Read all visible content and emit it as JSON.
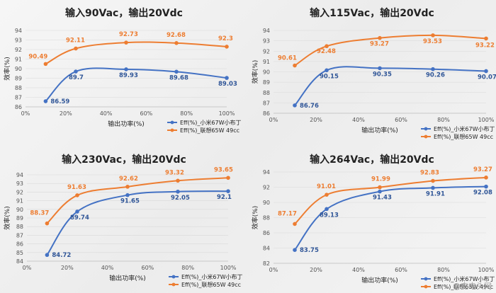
{
  "colors": {
    "series1": "#4472C4",
    "series2": "#ED7D31"
  },
  "watermark": "@充电头网",
  "chart_data": [
    {
      "type": "line",
      "title": "输入90Vac，输出20Vdc",
      "xlabel": "输出功率(%)",
      "ylabel": "效率(%)",
      "x": [
        10,
        25,
        50,
        75,
        100
      ],
      "xlim": [
        0,
        100
      ],
      "xticks": [
        "0%",
        "20%",
        "40%",
        "60%",
        "80%",
        "100%"
      ],
      "ylim": [
        86,
        94
      ],
      "yticks": [
        86,
        87,
        88,
        89,
        90,
        91,
        92,
        93,
        94
      ],
      "legend_position": "bottom-right",
      "series": [
        {
          "name": "Eff(%)_小米67W小布丁",
          "values": [
            86.59,
            89.7,
            89.93,
            89.68,
            89.03
          ],
          "labels": [
            "86.59",
            "89.7",
            "89.93",
            "89.68",
            "89.03"
          ]
        },
        {
          "name": "Eff(%)_联想65W 49cc",
          "values": [
            90.49,
            92.11,
            92.73,
            92.68,
            92.3
          ],
          "labels": [
            "90.49",
            "92.11",
            "92.73",
            "92.68",
            "92.3"
          ]
        }
      ]
    },
    {
      "type": "line",
      "title": "输入115Vac，输出20Vdc",
      "xlabel": "输出功率(%)",
      "ylabel": "效率(%)",
      "x": [
        10,
        25,
        50,
        75,
        100
      ],
      "xlim": [
        0,
        100
      ],
      "xticks": [
        "0%",
        "20%",
        "40%",
        "60%",
        "80%",
        "100%"
      ],
      "ylim": [
        86,
        94
      ],
      "yticks": [
        86,
        87,
        88,
        89,
        90,
        91,
        92,
        93,
        94
      ],
      "legend_position": "bottom-right",
      "series": [
        {
          "name": "Eff(%)_小米67W小布丁",
          "values": [
            86.76,
            90.15,
            90.35,
            90.26,
            90.07
          ],
          "labels": [
            "86.76",
            "90.15",
            "90.35",
            "90.26",
            "90.07"
          ]
        },
        {
          "name": "Eff(%)_联想65W 49cc",
          "values": [
            90.61,
            92.48,
            93.27,
            93.53,
            93.22
          ],
          "labels": [
            "90.61",
            "92.48",
            "93.27",
            "93.53",
            "93.22"
          ]
        }
      ]
    },
    {
      "type": "line",
      "title": "输入230Vac，输出20Vdc",
      "xlabel": "输出功率(%)",
      "ylabel": "效率(%)",
      "x": [
        10,
        25,
        50,
        75,
        100
      ],
      "xlim": [
        0,
        100
      ],
      "xticks": [
        "0%",
        "20%",
        "40%",
        "60%",
        "80%",
        "100%"
      ],
      "ylim": [
        84,
        94
      ],
      "yticks": [
        84,
        85,
        86,
        87,
        88,
        89,
        90,
        91,
        92,
        93,
        94
      ],
      "legend_position": "bottom-right",
      "series": [
        {
          "name": "Eff(%)_小米67W小布丁",
          "values": [
            84.72,
            89.74,
            91.65,
            92.05,
            92.1
          ],
          "labels": [
            "84.72",
            "89.74",
            "91.65",
            "92.05",
            "92.1"
          ]
        },
        {
          "name": "Eff(%)_联想65W 49cc",
          "values": [
            88.37,
            91.63,
            92.62,
            93.32,
            93.65
          ],
          "labels": [
            "88.37",
            "91.63",
            "92.62",
            "93.32",
            "93.65"
          ]
        }
      ]
    },
    {
      "type": "line",
      "title": "输入264Vac，输出20Vdc",
      "xlabel": "输出功率(%)",
      "ylabel": "效率(%)",
      "x": [
        10,
        25,
        50,
        75,
        100
      ],
      "xlim": [
        0,
        100
      ],
      "xticks": [
        "0%",
        "20%",
        "40%",
        "60%",
        "80%",
        "100%"
      ],
      "ylim": [
        82,
        94
      ],
      "yticks": [
        82,
        84,
        86,
        88,
        90,
        92,
        94
      ],
      "legend_position": "bottom-right",
      "series": [
        {
          "name": "Eff(%)_小米67W小布丁",
          "values": [
            83.75,
            89.13,
            91.43,
            91.91,
            92.08
          ],
          "labels": [
            "83.75",
            "89.13",
            "91.43",
            "91.91",
            "92.08"
          ]
        },
        {
          "name": "Eff(%)_联想65W 49cc",
          "values": [
            87.17,
            91.01,
            91.99,
            92.83,
            93.27
          ],
          "labels": [
            "87.17",
            "91.01",
            "91.99",
            "92.83",
            "93.27"
          ]
        }
      ]
    }
  ]
}
